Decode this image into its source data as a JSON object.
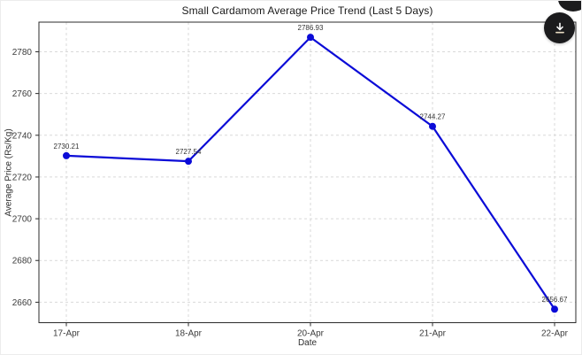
{
  "colors": {
    "line": "#0b0bd7",
    "marker": "#0b0bd7",
    "grid": "#d9d9d9",
    "spine": "#2b2b2b",
    "tick_text": "#3c3c3c",
    "annotation_text": "#333333",
    "title_text": "#1a1a1a",
    "button_bg": "#1b1b1d",
    "button_arrow": "#ffffff",
    "button_tray": "#e9dcc3"
  },
  "icons": {
    "download": "download-icon"
  },
  "chart_data": {
    "type": "line",
    "title": "Small Cardamom Average Price Trend (Last 5 Days)",
    "xlabel": "Date",
    "ylabel": "Average Price (Rs/Kg)",
    "categories": [
      "17-Apr",
      "18-Apr",
      "20-Apr",
      "21-Apr",
      "22-Apr"
    ],
    "values": [
      2730.21,
      2727.54,
      2786.93,
      2744.27,
      2656.67
    ],
    "point_labels": [
      "2730.21",
      "2727.54",
      "2786.93",
      "2744.27",
      "2656.67"
    ],
    "yticks": [
      2660,
      2680,
      2700,
      2720,
      2740,
      2760,
      2780
    ],
    "ylim": [
      2650.2,
      2794.2
    ],
    "grid": true,
    "grid_style": "dashed",
    "legend_position": "none",
    "marker": "circle"
  }
}
